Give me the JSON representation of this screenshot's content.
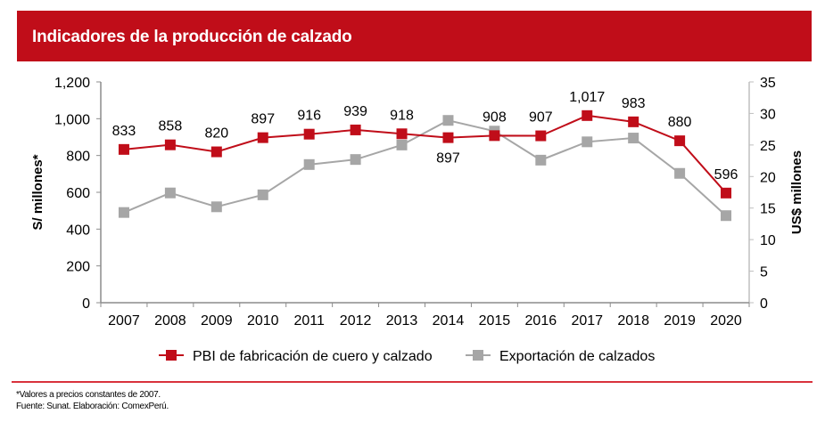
{
  "header": {
    "title": "Indicadores de la producción de calzado"
  },
  "colors": {
    "header_bg": "#c00d19",
    "series_pbi": "#c00d19",
    "series_export": "#a6a6a6",
    "axis": "#808080",
    "footer_line": "#d9323c"
  },
  "chart_data": {
    "type": "line",
    "title": "Indicadores de la producción de calzado",
    "categories": [
      "2007",
      "2008",
      "2009",
      "2010",
      "2011",
      "2012",
      "2013",
      "2014",
      "2015",
      "2016",
      "2017",
      "2018",
      "2019",
      "2020"
    ],
    "series": [
      {
        "name": "PBI de fabricación de cuero y calzado",
        "axis": "left",
        "color": "#c00d19",
        "values": [
          833,
          858,
          820,
          897,
          916,
          939,
          918,
          897,
          908,
          907,
          1017,
          983,
          880,
          596
        ],
        "labels": [
          "833",
          "858",
          "820",
          "897",
          "916",
          "939",
          "918",
          "897",
          "908",
          "907",
          "1,017",
          "983",
          "880",
          "596"
        ],
        "label_positions": [
          "above",
          "above",
          "above",
          "above",
          "above",
          "above",
          "above",
          "below",
          "above",
          "above",
          "above",
          "above",
          "above",
          "above"
        ]
      },
      {
        "name": "Exportación de calzados",
        "axis": "right",
        "color": "#a6a6a6",
        "values": [
          14.3,
          17.4,
          15.2,
          17.1,
          21.9,
          22.7,
          25.0,
          28.9,
          27.2,
          22.6,
          25.5,
          26.1,
          20.5,
          13.8
        ]
      }
    ],
    "y_left": {
      "label": "S/ millones*",
      "ylim": [
        0,
        1200
      ],
      "ticks": [
        0,
        200,
        400,
        600,
        800,
        1000,
        1200
      ],
      "tick_labels": [
        "0",
        "200",
        "400",
        "600",
        "800",
        "1,000",
        "1,200"
      ]
    },
    "y_right": {
      "label": "US$ millones",
      "ylim": [
        0,
        35
      ],
      "ticks": [
        0,
        5,
        10,
        15,
        20,
        25,
        30,
        35
      ],
      "tick_labels": [
        "0",
        "5",
        "10",
        "15",
        "20",
        "25",
        "30",
        "35"
      ]
    },
    "xlabel": "",
    "grid": false,
    "legend": {
      "placement": "bottom",
      "entries": [
        "PBI de fabricación de cuero y calzado",
        "Exportación de calzados"
      ]
    }
  },
  "footnotes": {
    "note": "*Valores a precios constantes de 2007.",
    "source": "Fuente: Sunat. Elaboración: ComexPerú."
  }
}
